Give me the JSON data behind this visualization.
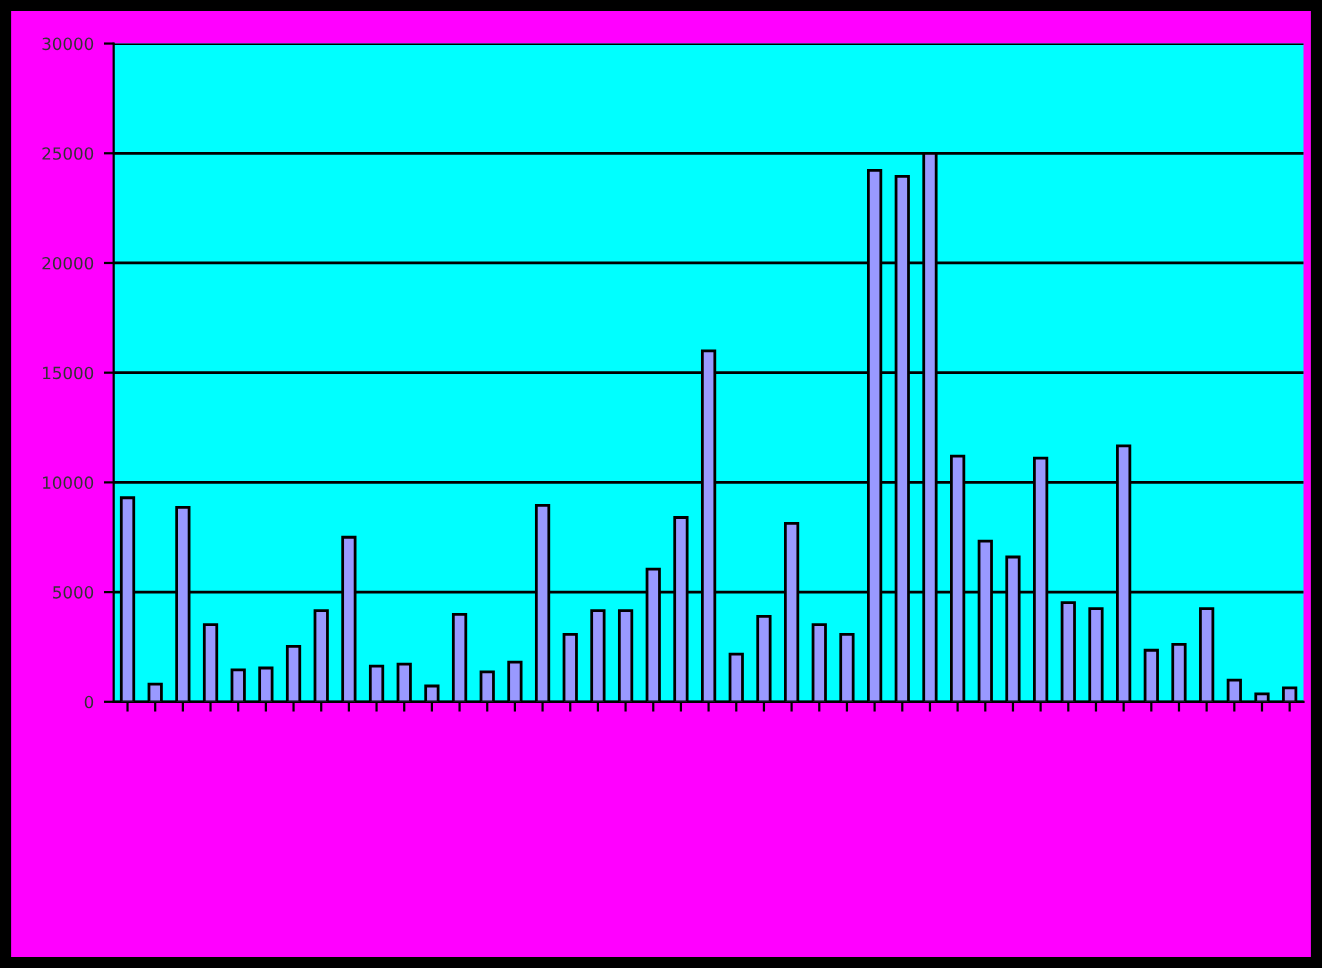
{
  "chart_data": {
    "type": "bar",
    "categories": [
      null,
      null,
      null,
      null,
      null,
      null,
      null,
      null,
      null,
      null,
      null,
      null,
      null,
      null,
      null,
      null,
      null,
      null,
      null,
      null,
      null,
      null,
      null,
      null,
      null,
      null,
      null,
      null,
      null,
      null,
      null,
      null,
      null,
      null,
      null,
      null,
      null,
      null,
      null,
      null,
      null,
      null,
      null
    ],
    "values": [
      9300,
      810,
      8860,
      3520,
      1450,
      1540,
      2530,
      4160,
      7500,
      1630,
      1720,
      720,
      3980,
      1360,
      1810,
      8950,
      3070,
      4160,
      4160,
      6050,
      8400,
      15990,
      2170,
      3890,
      8130,
      3520,
      3070,
      24220,
      23950,
      25000,
      11200,
      7320,
      6600,
      11110,
      4520,
      4250,
      11660,
      2350,
      2620,
      4250,
      990,
      360,
      630
    ],
    "color": "#9999ff",
    "ylim": [
      0,
      30000
    ],
    "yticks": [
      0,
      5000,
      10000,
      15000,
      20000,
      25000,
      30000
    ],
    "grid": "y"
  }
}
